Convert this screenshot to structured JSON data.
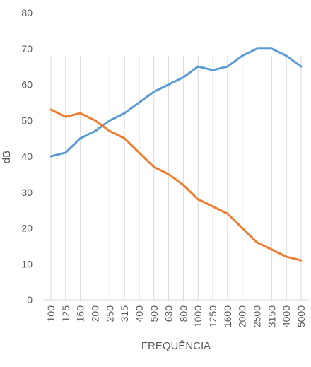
{
  "chart_data": {
    "type": "line",
    "xlabel": "FREQUÊNCIA",
    "ylabel": "dB",
    "ylim": [
      0,
      80
    ],
    "yticks": [
      0,
      10,
      20,
      30,
      40,
      50,
      60,
      70,
      80
    ],
    "grid": "vertical",
    "categories": [
      "100",
      "125",
      "160",
      "200",
      "250",
      "315",
      "400",
      "500",
      "630",
      "800",
      "1000",
      "1250",
      "1600",
      "2000",
      "2500",
      "3150",
      "4000",
      "5000"
    ],
    "series": [
      {
        "color": "#5b9bd5",
        "values": [
          40,
          41,
          45,
          47,
          50,
          52,
          55,
          58,
          60,
          62,
          65,
          64,
          65,
          68,
          70,
          70,
          68,
          65
        ]
      },
      {
        "color": "#ed7d31",
        "values": [
          53,
          51,
          52,
          50,
          47,
          45,
          41,
          37,
          35,
          32,
          28,
          26,
          24,
          20,
          16,
          14,
          12,
          11
        ]
      }
    ]
  }
}
